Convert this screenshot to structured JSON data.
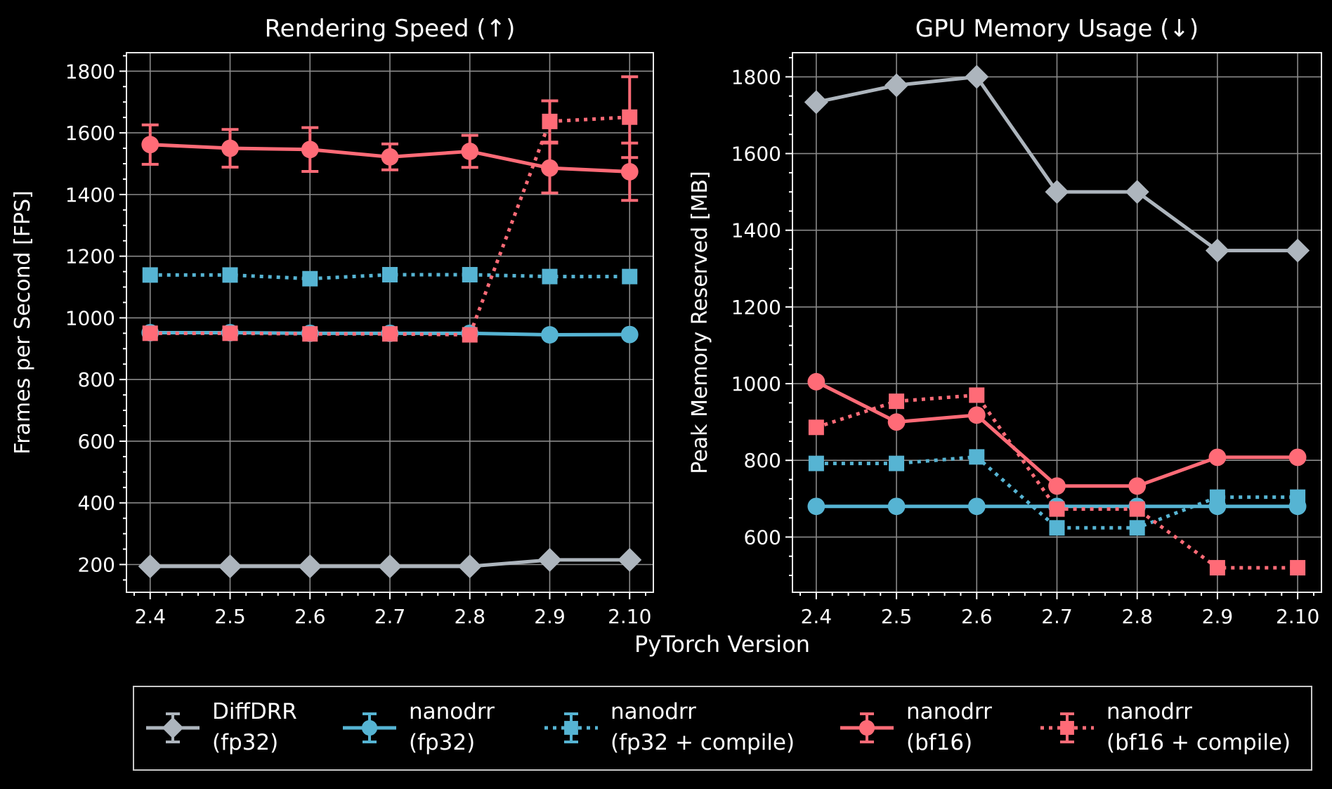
{
  "colors": {
    "background": "#000000",
    "gray": "#adb5bd",
    "blue": "#56b4d3",
    "red": "#ff6b77",
    "grid": "#8a8a8a"
  },
  "shared_xlabel": "PyTorch Version",
  "legend": {
    "placement": "bottom",
    "entries": [
      {
        "line1": "DiffDRR",
        "line2": "(fp32)",
        "color": "#adb5bd",
        "marker": "diamond",
        "dash": "solid"
      },
      {
        "line1": "nanodrr",
        "line2": "(fp32)",
        "color": "#56b4d3",
        "marker": "circle",
        "dash": "solid"
      },
      {
        "line1": "nanodrr",
        "line2": "(fp32 + compile)",
        "color": "#56b4d3",
        "marker": "square",
        "dash": "dotted"
      },
      {
        "line1": "nanodrr",
        "line2": "(bf16)",
        "color": "#ff6b77",
        "marker": "circle",
        "dash": "solid"
      },
      {
        "line1": "nanodrr",
        "line2": "(bf16 + compile)",
        "color": "#ff6b77",
        "marker": "square",
        "dash": "dotted"
      }
    ]
  },
  "chart_data": [
    {
      "type": "line",
      "title": "Rendering Speed (↑)",
      "ylabel": "Frames per Second [FPS]",
      "categories": [
        "2.4",
        "2.5",
        "2.6",
        "2.7",
        "2.8",
        "2.9",
        "2.10"
      ],
      "ylim": [
        110,
        1860
      ],
      "yticks": [
        200,
        400,
        600,
        800,
        1000,
        1200,
        1400,
        1600,
        1800
      ],
      "grid": true,
      "series": [
        {
          "legend_index": 0,
          "values": [
            194,
            194,
            194,
            194,
            194,
            215,
            215
          ],
          "err": [
            0,
            0,
            0,
            0,
            0,
            0,
            0
          ]
        },
        {
          "legend_index": 1,
          "values": [
            952,
            952,
            950,
            950,
            950,
            945,
            946
          ],
          "err": [
            0,
            0,
            0,
            0,
            0,
            0,
            0
          ]
        },
        {
          "legend_index": 2,
          "values": [
            1139,
            1139,
            1127,
            1140,
            1140,
            1134,
            1134
          ],
          "err": [
            0,
            0,
            0,
            0,
            0,
            0,
            0
          ]
        },
        {
          "legend_index": 3,
          "values": [
            1562,
            1550,
            1546,
            1522,
            1540,
            1486,
            1474
          ],
          "err": [
            64,
            61,
            71,
            42,
            52,
            81,
            93
          ]
        },
        {
          "legend_index": 4,
          "values": [
            950,
            950,
            948,
            948,
            945,
            1637,
            1651
          ],
          "err": [
            0,
            0,
            0,
            0,
            0,
            67,
            131
          ]
        }
      ]
    },
    {
      "type": "line",
      "title": "GPU Memory Usage (↓)",
      "ylabel": "Peak Memory Reserved [MB]",
      "categories": [
        "2.4",
        "2.5",
        "2.6",
        "2.7",
        "2.8",
        "2.9",
        "2.10"
      ],
      "ylim": [
        456,
        1863
      ],
      "yticks": [
        600,
        800,
        1000,
        1200,
        1400,
        1600,
        1800
      ],
      "grid": true,
      "series": [
        {
          "legend_index": 0,
          "values": [
            1734,
            1778,
            1800,
            1500,
            1500,
            1347,
            1347
          ],
          "err": [
            0,
            0,
            0,
            0,
            0,
            0,
            0
          ]
        },
        {
          "legend_index": 1,
          "values": [
            680,
            680,
            680,
            680,
            680,
            680,
            680
          ],
          "err": [
            0,
            0,
            0,
            0,
            0,
            0,
            0
          ]
        },
        {
          "legend_index": 2,
          "values": [
            792,
            792,
            809,
            624,
            624,
            704,
            704
          ],
          "err": [
            0,
            0,
            0,
            0,
            0,
            0,
            0
          ]
        },
        {
          "legend_index": 3,
          "values": [
            1005,
            900,
            918,
            733,
            733,
            808,
            808
          ],
          "err": [
            0,
            0,
            0,
            0,
            0,
            0,
            0
          ]
        },
        {
          "legend_index": 4,
          "values": [
            886,
            954,
            970,
            673,
            673,
            520,
            520
          ],
          "err": [
            0,
            0,
            0,
            0,
            0,
            0,
            0
          ]
        }
      ]
    }
  ]
}
